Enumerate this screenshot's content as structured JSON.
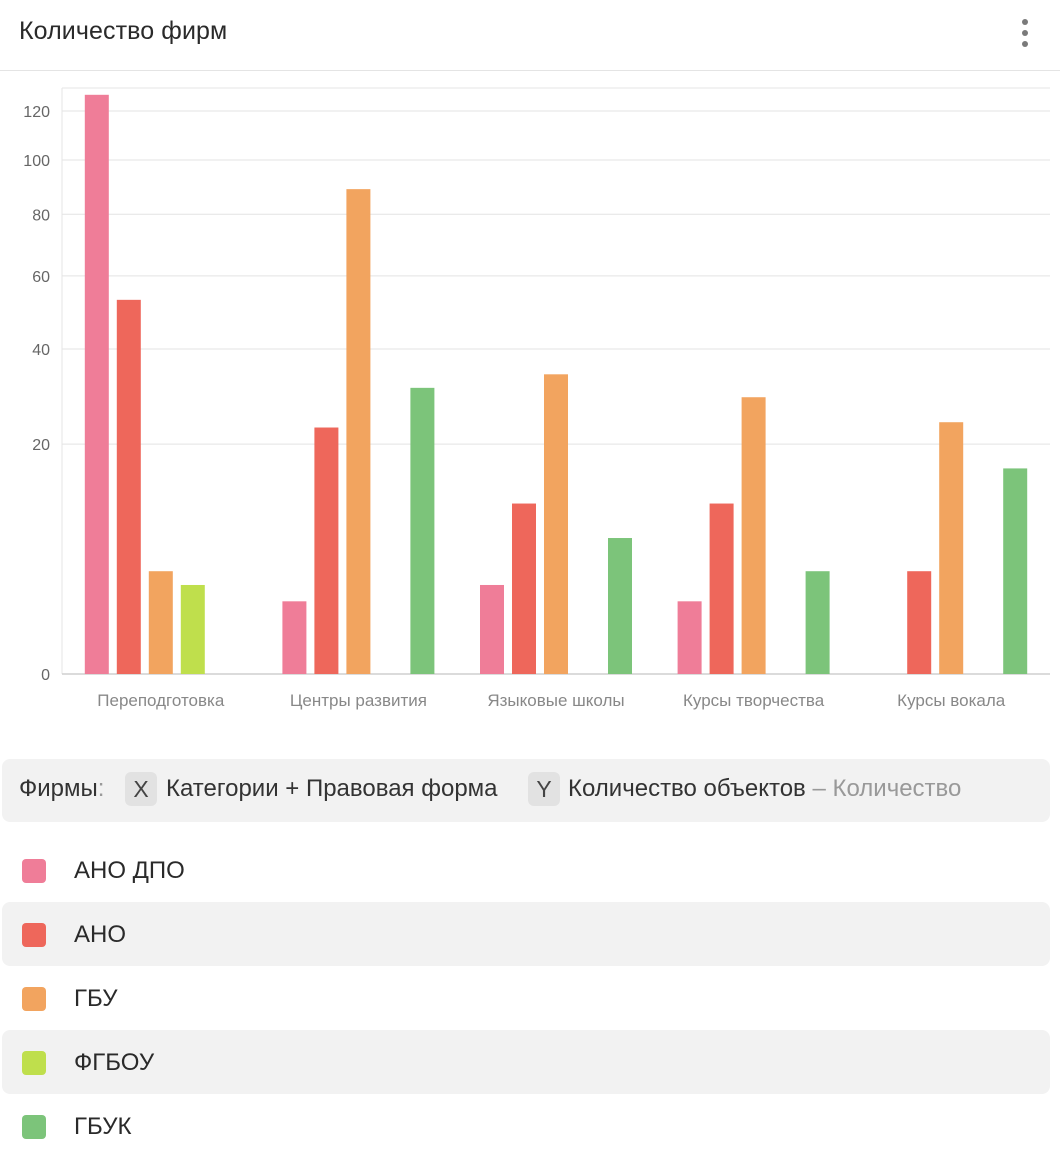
{
  "header": {
    "title": "Количество фирм",
    "menu_icon": "kebab-menu-icon"
  },
  "chart_data": {
    "type": "bar",
    "title": "Количество фирм",
    "categories": [
      "Переподготовка",
      "Центры развития",
      "Языковые школы",
      "Курсы творчества",
      "Курсы вокала"
    ],
    "series": [
      {
        "name": "АНО ДПО",
        "color": "#ef7d98",
        "values": [
          127,
          2,
          3,
          2,
          null
        ]
      },
      {
        "name": "АНО",
        "color": "#ee675b",
        "values": [
          53,
          23,
          11,
          11,
          4
        ]
      },
      {
        "name": "ГБУ",
        "color": "#f2a45f",
        "values": [
          4,
          89,
          34,
          29,
          24
        ]
      },
      {
        "name": "ФГБОУ",
        "color": "#bfdf4c",
        "values": [
          3,
          null,
          null,
          null,
          null
        ]
      },
      {
        "name": "ГБУК",
        "color": "#7cc47a",
        "values": [
          null,
          31,
          7,
          4,
          16
        ]
      }
    ],
    "yticks": [
      0,
      20,
      40,
      60,
      80,
      100,
      120
    ],
    "ylim": [
      0,
      130
    ],
    "yscale": "sqrt",
    "xlabel": "Категории + Правовая форма",
    "ylabel": "Количество объектов",
    "grid": true,
    "legend": "bottom"
  },
  "axis_bar": {
    "dataset_label": "Фирмы",
    "colon": ":",
    "x_badge": "X",
    "x_field": "Категории + Правовая форма",
    "y_badge": "Y",
    "y_field": "Количество объектов",
    "y_agg": "– Количество"
  },
  "legend": [
    {
      "label": "АНО ДПО",
      "color": "#ef7d98"
    },
    {
      "label": "АНО",
      "color": "#ee675b"
    },
    {
      "label": "ГБУ",
      "color": "#f2a45f"
    },
    {
      "label": "ФГБОУ",
      "color": "#bfdf4c"
    },
    {
      "label": "ГБУК",
      "color": "#7cc47a"
    }
  ]
}
